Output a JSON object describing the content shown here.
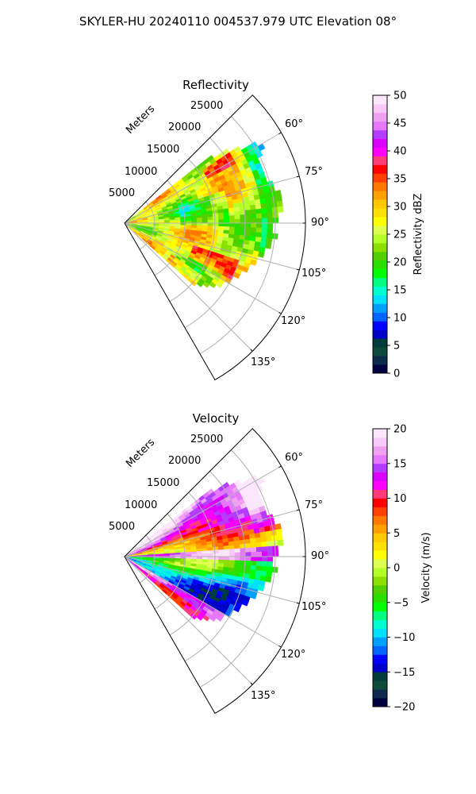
{
  "figure": {
    "title": "SKYLER-HU  20240110  004537.979 UTC Elevation 08°"
  },
  "colors": {
    "grid": "#b0b0b0",
    "axis": "#000000",
    "reflectivity_bands": [
      "#000040",
      "#0c2a4c",
      "#0d4a3a",
      "#003c3c",
      "#0000c8",
      "#0000ff",
      "#0064ff",
      "#00a0ff",
      "#00e0ff",
      "#00ffd0",
      "#00ff80",
      "#00ff00",
      "#28e000",
      "#50d000",
      "#8ce000",
      "#b4ff28",
      "#dcff50",
      "#ffff00",
      "#ffe000",
      "#ffc800",
      "#ffa000",
      "#ff7800",
      "#ff4000",
      "#ff0000",
      "#ff3c78",
      "#ff00ff",
      "#dc00ff",
      "#b43cff",
      "#e678ff",
      "#f0a0f0",
      "#f8c8f8",
      "#fce6fc"
    ],
    "velocity_bands": [
      "#000040",
      "#0c2a4c",
      "#0d4a3a",
      "#003c3c",
      "#0000c8",
      "#0000ff",
      "#0064ff",
      "#00a0ff",
      "#00e0ff",
      "#00ffd0",
      "#00ff80",
      "#00ff00",
      "#28e000",
      "#50d000",
      "#8ce000",
      "#b4ff28",
      "#dcff50",
      "#ffff00",
      "#ffe000",
      "#ffc800",
      "#ffa000",
      "#ff7800",
      "#ff4000",
      "#ff0000",
      "#ff3c78",
      "#ff00ff",
      "#dc00ff",
      "#b43cff",
      "#e678ff",
      "#f0a0f0",
      "#f8c8f8",
      "#fce6fc"
    ]
  },
  "chart_data": [
    {
      "type": "heatmap",
      "projection": "polar-sector",
      "title": "Reflectivity",
      "radial_axis_label": "Meters",
      "radial_ticks": [
        5000,
        10000,
        15000,
        20000,
        25000
      ],
      "radial_tick_labels": [
        "5000",
        "10000",
        "15000",
        "20000",
        "25000"
      ],
      "radial_range": [
        0,
        30000
      ],
      "azimuth_range_deg": [
        45,
        150
      ],
      "azimuth_ticks_deg": [
        60,
        75,
        90,
        105,
        120,
        135
      ],
      "azimuth_tick_labels": [
        "60°",
        "75°",
        "90°",
        "105°",
        "120°",
        "135°"
      ],
      "grid": true,
      "colorbar": {
        "label": "Reflectivity dBZ",
        "range": [
          0,
          50
        ],
        "ticks": [
          0,
          5,
          10,
          15,
          20,
          25,
          30,
          35,
          40,
          45,
          50
        ],
        "tick_labels": [
          "0",
          "5",
          "10",
          "15",
          "20",
          "25",
          "30",
          "35",
          "40",
          "45",
          "50"
        ]
      }
    },
    {
      "type": "heatmap",
      "projection": "polar-sector",
      "title": "Velocity",
      "radial_axis_label": "Meters",
      "radial_ticks": [
        5000,
        10000,
        15000,
        20000,
        25000
      ],
      "radial_tick_labels": [
        "5000",
        "10000",
        "15000",
        "20000",
        "25000"
      ],
      "radial_range": [
        0,
        30000
      ],
      "azimuth_range_deg": [
        45,
        150
      ],
      "azimuth_ticks_deg": [
        60,
        75,
        90,
        105,
        120,
        135
      ],
      "azimuth_tick_labels": [
        "60°",
        "75°",
        "90°",
        "105°",
        "120°",
        "135°"
      ],
      "grid": true,
      "colorbar": {
        "label": "Velocity (m/s)",
        "range": [
          -20,
          20
        ],
        "ticks": [
          -20,
          -15,
          -10,
          -5,
          0,
          5,
          10,
          15,
          20
        ],
        "tick_labels": [
          "−20",
          "−15",
          "−10",
          "−5",
          "0",
          "5",
          "10",
          "15",
          "20"
        ]
      }
    }
  ]
}
